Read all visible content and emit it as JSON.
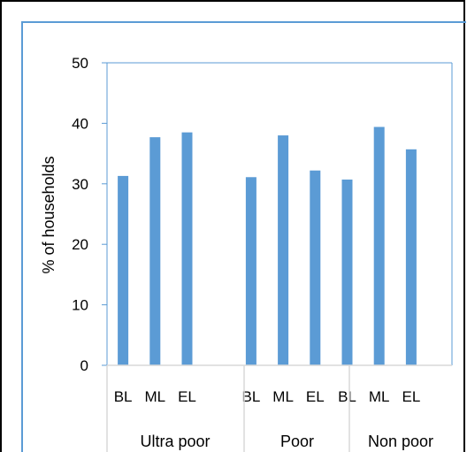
{
  "chart_data": {
    "type": "bar",
    "ylabel": "% of households",
    "xlabel": "",
    "ylim": [
      0,
      50
    ],
    "yticks": [
      0,
      10,
      20,
      30,
      40,
      50
    ],
    "grid": false,
    "colors": {
      "bar": "#5b9bd5",
      "axis": "#5b9bd5",
      "separator": "#d9d9d9"
    },
    "groups": [
      {
        "name": "Ultra poor",
        "categories": [
          "BL",
          "ML",
          "EL"
        ],
        "values": [
          31.3,
          37.7,
          38.5
        ]
      },
      {
        "name": "Poor",
        "categories": [
          "BL",
          "ML",
          "EL"
        ],
        "values": [
          31.1,
          38.0,
          32.2
        ]
      },
      {
        "name": "Non poor",
        "categories": [
          "BL",
          "ML",
          "EL"
        ],
        "values": [
          30.7,
          39.4,
          35.7
        ]
      }
    ]
  }
}
